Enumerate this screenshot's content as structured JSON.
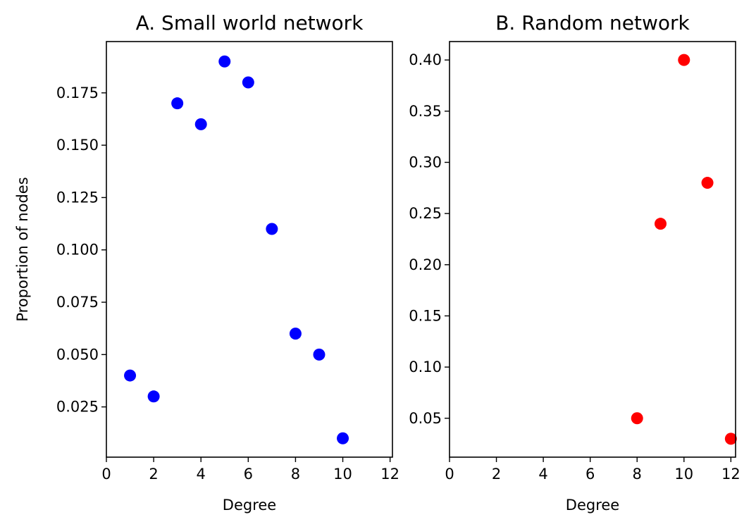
{
  "chart_data": [
    {
      "type": "scatter",
      "title": "A. Small world network",
      "xlabel": "Degree",
      "ylabel": "Proportion of nodes",
      "xlim": [
        0,
        12.1
      ],
      "ylim": [
        0.001,
        0.1995
      ],
      "xticks": [
        0,
        2,
        4,
        6,
        8,
        10,
        12
      ],
      "yticks": [
        0.025,
        0.05,
        0.075,
        0.1,
        0.125,
        0.15,
        0.175
      ],
      "ytick_labels": [
        "0.025",
        "0.050",
        "0.075",
        "0.100",
        "0.125",
        "0.150",
        "0.175"
      ],
      "grid": false,
      "series": [
        {
          "color": "#0000ff",
          "x": [
            1,
            2,
            3,
            4,
            5,
            6,
            7,
            8,
            9,
            10
          ],
          "y": [
            0.04,
            0.03,
            0.17,
            0.16,
            0.19,
            0.18,
            0.11,
            0.06,
            0.05,
            0.01
          ]
        }
      ]
    },
    {
      "type": "scatter",
      "title": "B. Random network",
      "xlabel": "Degree",
      "ylabel": "",
      "xlim": [
        0,
        12.2
      ],
      "ylim": [
        0.012,
        0.418
      ],
      "xticks": [
        0,
        2,
        4,
        6,
        8,
        10,
        12
      ],
      "yticks": [
        0.05,
        0.1,
        0.15,
        0.2,
        0.25,
        0.3,
        0.35,
        0.4
      ],
      "ytick_labels": [
        "0.05",
        "0.10",
        "0.15",
        "0.20",
        "0.25",
        "0.30",
        "0.35",
        "0.40"
      ],
      "grid": false,
      "series": [
        {
          "color": "#ff0000",
          "x": [
            8,
            9,
            10,
            11,
            12
          ],
          "y": [
            0.05,
            0.24,
            0.4,
            0.28,
            0.03
          ]
        }
      ]
    }
  ]
}
